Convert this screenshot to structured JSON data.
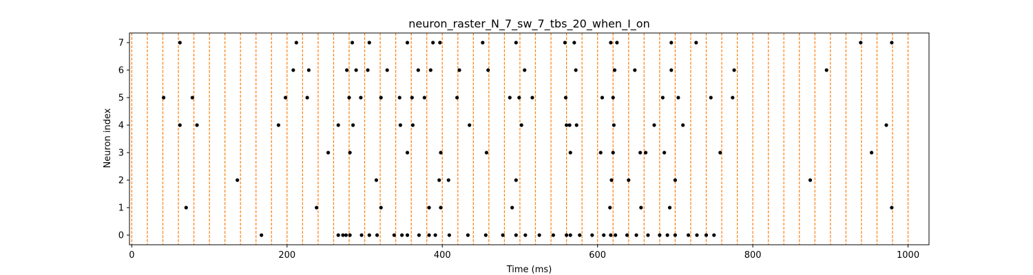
{
  "chart_data": {
    "type": "scatter",
    "title": "neuron_raster_N_7_sw_7_tbs_20_when_I_on",
    "xlabel": "Time (ms)",
    "ylabel": "Neuron index",
    "xlim": [
      -3,
      1027
    ],
    "ylim": [
      -0.35,
      7.35
    ],
    "xticks": [
      0,
      200,
      400,
      600,
      800,
      1000
    ],
    "yticks": [
      0,
      1,
      2,
      3,
      4,
      5,
      6,
      7
    ],
    "grid": false,
    "vlines": {
      "start": 0,
      "end": 1000,
      "step": 20,
      "color": "#ff7f0e",
      "style": "dashed"
    },
    "marker_color": "#000000",
    "series": [
      {
        "neuron": 0,
        "spikes": [
          167,
          266,
          272,
          276,
          281,
          296,
          306,
          316,
          338,
          348,
          355,
          370,
          383,
          391,
          409,
          433,
          456,
          478,
          495,
          507,
          525,
          543,
          560,
          565,
          577,
          593,
          608,
          617,
          623,
          638,
          650,
          665,
          680,
          690,
          700,
          717,
          728,
          740,
          750
        ]
      },
      {
        "neuron": 1,
        "spikes": [
          70,
          238,
          321,
          383,
          398,
          490,
          616,
          656,
          693,
          979
        ]
      },
      {
        "neuron": 2,
        "spikes": [
          136,
          315,
          396,
          408,
          495,
          618,
          640,
          700,
          874
        ]
      },
      {
        "neuron": 3,
        "spikes": [
          253,
          281,
          355,
          398,
          457,
          565,
          604,
          620,
          655,
          662,
          686,
          758,
          953
        ]
      },
      {
        "neuron": 4,
        "spikes": [
          62,
          84,
          189,
          266,
          285,
          346,
          362,
          435,
          502,
          560,
          564,
          573,
          621,
          673,
          710,
          972
        ]
      },
      {
        "neuron": 5,
        "spikes": [
          41,
          78,
          198,
          226,
          280,
          295,
          321,
          345,
          361,
          377,
          419,
          487,
          499,
          516,
          559,
          606,
          620,
          684,
          704,
          746,
          774
        ]
      },
      {
        "neuron": 6,
        "spikes": [
          208,
          228,
          277,
          289,
          304,
          329,
          369,
          385,
          422,
          459,
          506,
          572,
          622,
          648,
          695,
          776,
          895
        ]
      },
      {
        "neuron": 7,
        "spikes": [
          62,
          212,
          284,
          306,
          355,
          388,
          397,
          452,
          495,
          558,
          570,
          617,
          625,
          695,
          727,
          939,
          979
        ]
      }
    ]
  }
}
